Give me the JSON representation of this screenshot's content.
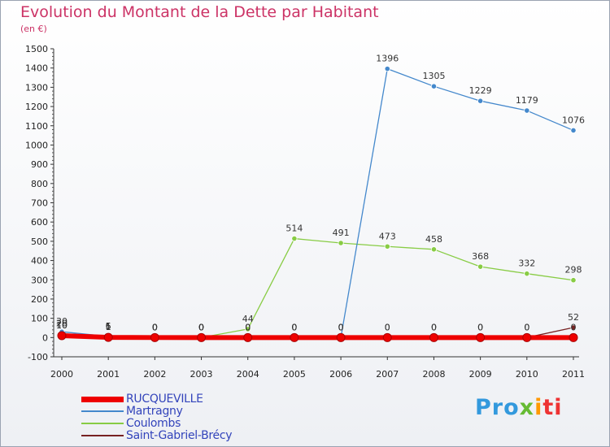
{
  "title": "Evolution du Montant de la Dette par Habitant",
  "subtitle": "(en €)",
  "logo": [
    "Pro",
    "x",
    "i",
    "ti"
  ],
  "chart_data": {
    "type": "line",
    "x": [
      "2000",
      "2001",
      "2002",
      "2003",
      "2004",
      "2005",
      "2006",
      "2007",
      "2008",
      "2009",
      "2010",
      "2011"
    ],
    "ylim": [
      -100,
      1500
    ],
    "yticks": [
      -100,
      0,
      100,
      200,
      300,
      400,
      500,
      600,
      700,
      800,
      900,
      1000,
      1100,
      1200,
      1300,
      1400,
      1500
    ],
    "grid": false,
    "legend_position": "bottom-left",
    "series": [
      {
        "name": "RUCQUEVILLE",
        "color": "#ee0000",
        "values": [
          10,
          1,
          0,
          0,
          0,
          0,
          0,
          0,
          0,
          0,
          0,
          0
        ],
        "labels": [
          "10",
          "1",
          "0",
          "0",
          "0",
          "0",
          "0",
          "0",
          "0",
          "0",
          "0",
          "0"
        ]
      },
      {
        "name": "Martragny",
        "color": "#4488cc",
        "values": [
          30,
          6,
          0,
          0,
          0,
          0,
          0,
          1396,
          1305,
          1229,
          1179,
          1076
        ],
        "labels": [
          "30",
          "6",
          "0",
          "0",
          "0",
          "0",
          "0",
          "1396",
          "1305",
          "1229",
          "1179",
          "1076"
        ]
      },
      {
        "name": "Coulombs",
        "color": "#88cc44",
        "values": [
          20,
          5,
          0,
          0,
          44,
          514,
          491,
          473,
          458,
          368,
          332,
          298
        ],
        "labels": [
          "20",
          "5",
          "0",
          "0",
          "44",
          "514",
          "491",
          "473",
          "458",
          "368",
          "332",
          "298"
        ]
      },
      {
        "name": "Saint-Gabriel-Brécy",
        "color": "#772222",
        "values": [
          10,
          1,
          0,
          0,
          0,
          0,
          0,
          0,
          0,
          0,
          0,
          52
        ],
        "labels": [
          "10",
          "1",
          "0",
          "0",
          "0",
          "0",
          "0",
          "0",
          "0",
          "0",
          "0",
          "52"
        ]
      }
    ]
  }
}
